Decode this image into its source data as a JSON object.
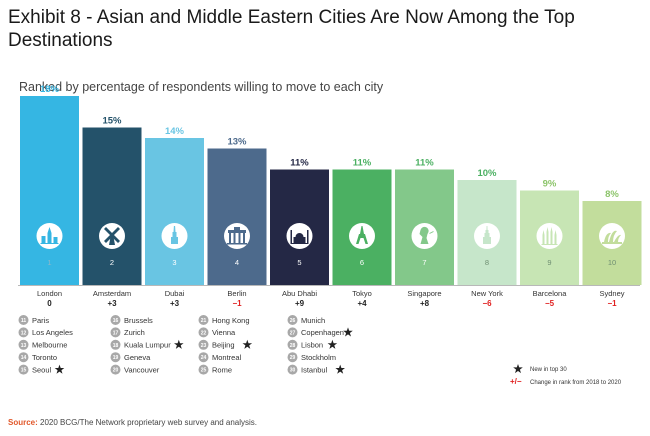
{
  "title": "Exhibit 8 - Asian and Middle Eastern Cities Are Now Among the Top Destinations",
  "subtitle": "Ranked by percentage of respondents willing to move to each city",
  "source_label": "Source:",
  "source_text": "2020 BCG/The Network proprietary web survey and analysis.",
  "chart_data": {
    "type": "bar",
    "title": "Exhibit 8 - Asian and Middle Eastern Cities Are Now Among the Top Destinations",
    "subtitle": "Ranked by percentage of respondents willing to move to each city",
    "ylim": [
      0,
      18
    ],
    "categories": [
      "London",
      "Amsterdam",
      "Dubai",
      "Berlin",
      "Abu Dhabi",
      "Tokyo",
      "Singapore",
      "New York",
      "Barcelona",
      "Sydney"
    ],
    "values": [
      18,
      15,
      14,
      13,
      11,
      11,
      11,
      10,
      9,
      8
    ],
    "value_labels": [
      "18%",
      "15%",
      "14%",
      "13%",
      "11%",
      "11%",
      "11%",
      "10%",
      "9%",
      "8%"
    ],
    "ranks": [
      "1",
      "2",
      "3",
      "4",
      "5",
      "6",
      "7",
      "8",
      "9",
      "10"
    ],
    "rank_changes": [
      "0",
      "+3",
      "+3",
      "−1",
      "+9",
      "+4",
      "+8",
      "−6",
      "−5",
      "−1"
    ],
    "bar_colors": [
      "#35b6e3",
      "#24526a",
      "#69c5e3",
      "#4d6a8c",
      "#242845",
      "#4bb062",
      "#83c88a",
      "#c6e6ca",
      "#c7e5b4",
      "#c2dd9c"
    ],
    "label_colors": [
      "#35b6e3",
      "#24526a",
      "#69c5e3",
      "#4d6a8c",
      "#242845",
      "#4bb062",
      "#4bb062",
      "#4bb062",
      "#8cc46a",
      "#8cc46a"
    ],
    "rank_text_colors": [
      "#8fb7c9",
      "#ffffff",
      "#ffffff",
      "#ffffff",
      "#ffffff",
      "#ffffff",
      "#ffffff",
      "#6f8f72",
      "#6f8f72",
      "#6f8f72"
    ],
    "change_colors": [
      "#222222",
      "#222222",
      "#222222",
      "#e02020",
      "#222222",
      "#222222",
      "#222222",
      "#e02020",
      "#e02020",
      "#e02020"
    ],
    "icons": [
      "london-tower-icon",
      "windmill-icon",
      "burj-khalifa-icon",
      "brandenburg-gate-icon",
      "mosque-icon",
      "tokyo-tower-icon",
      "merlion-icon",
      "empire-state-icon",
      "sagrada-familia-icon",
      "opera-house-icon"
    ],
    "more_cities": [
      {
        "rank": "11",
        "city": "Paris",
        "new": false
      },
      {
        "rank": "12",
        "city": "Los Angeles",
        "new": false
      },
      {
        "rank": "13",
        "city": "Melbourne",
        "new": false
      },
      {
        "rank": "14",
        "city": "Toronto",
        "new": false
      },
      {
        "rank": "15",
        "city": "Seoul",
        "new": true
      },
      {
        "rank": "16",
        "city": "Brussels",
        "new": false
      },
      {
        "rank": "17",
        "city": "Zurich",
        "new": false
      },
      {
        "rank": "18",
        "city": "Kuala Lumpur",
        "new": true
      },
      {
        "rank": "19",
        "city": "Geneva",
        "new": false
      },
      {
        "rank": "20",
        "city": "Vancouver",
        "new": false
      },
      {
        "rank": "21",
        "city": "Hong Kong",
        "new": false
      },
      {
        "rank": "22",
        "city": "Vienna",
        "new": false
      },
      {
        "rank": "23",
        "city": "Beijing",
        "new": true
      },
      {
        "rank": "24",
        "city": "Montreal",
        "new": false
      },
      {
        "rank": "25",
        "city": "Rome",
        "new": false
      },
      {
        "rank": "26",
        "city": "Munich",
        "new": false
      },
      {
        "rank": "27",
        "city": "Copenhagen",
        "new": true
      },
      {
        "rank": "28",
        "city": "Lisbon",
        "new": true
      },
      {
        "rank": "29",
        "city": "Stockholm",
        "new": false
      },
      {
        "rank": "30",
        "city": "Istanbul",
        "new": true
      }
    ],
    "legend": {
      "new_label": "New in top 30",
      "change_symbol": "+/−",
      "change_label": "Change in rank from 2018 to 2020"
    },
    "colors": {
      "grey": "#a8a8a8",
      "baseline": "#b8b8b8"
    }
  }
}
